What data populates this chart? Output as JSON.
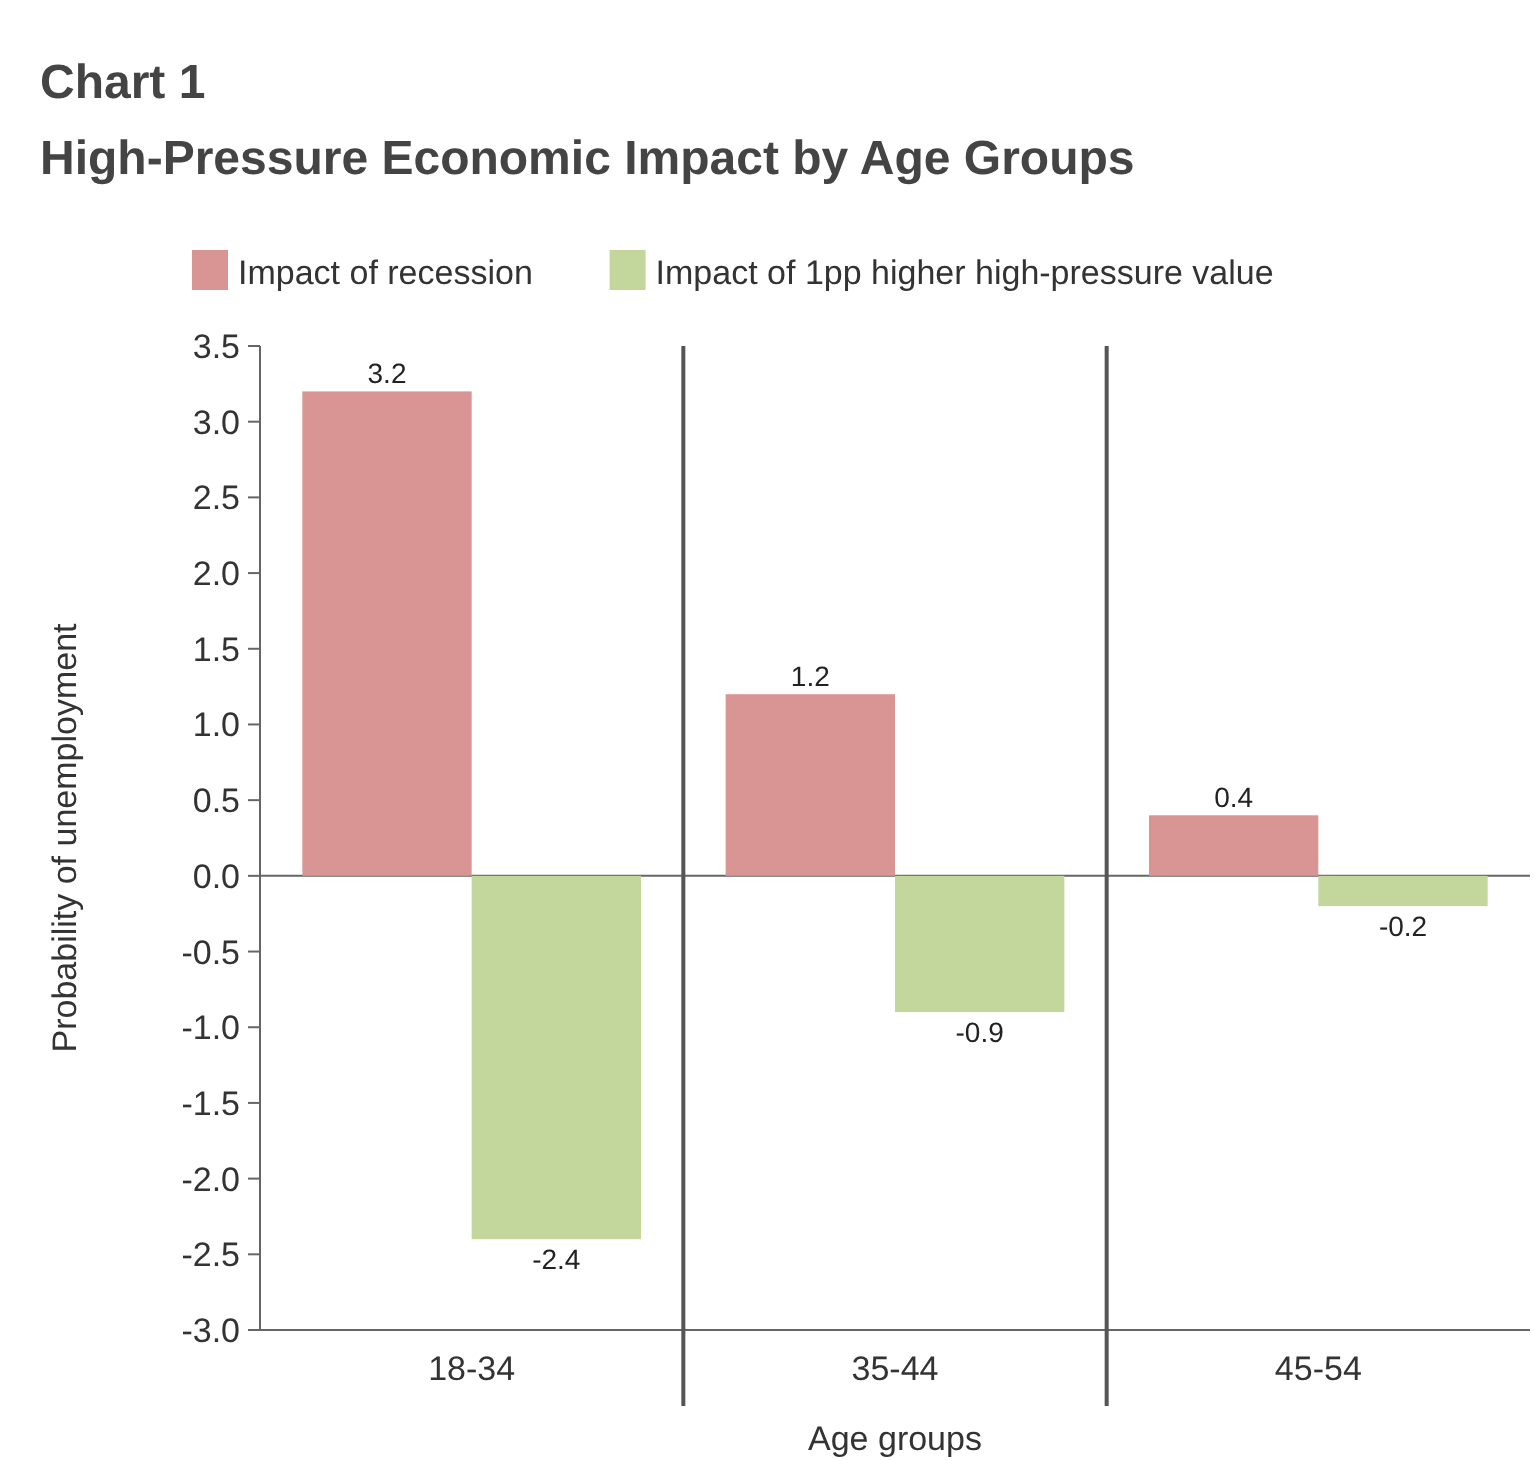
{
  "chart_data": {
    "type": "bar",
    "title": "Chart 1",
    "subtitle": "High-Pressure Economic Impact by Age Groups",
    "xlabel": "Age groups",
    "ylabel": "Probability of unemployment",
    "categories": [
      "18-34",
      "35-44",
      "45-54"
    ],
    "series": [
      {
        "name": "Impact of recession",
        "color": "#d99594",
        "values": [
          3.2,
          1.2,
          0.4
        ]
      },
      {
        "name": "Impact of 1pp higher high-pressure value",
        "color": "#c3d69b",
        "values": [
          -2.4,
          -0.9,
          -0.2
        ]
      }
    ],
    "ylim": [
      -3.0,
      3.5
    ],
    "yticks": [
      {
        "value": -3,
        "label": "-3.0"
      },
      {
        "value": -2.5,
        "label": "-2.5"
      },
      {
        "value": -2,
        "label": "-2.0"
      },
      {
        "value": -1.5,
        "label": "-1.5"
      },
      {
        "value": -1,
        "label": "-1.0"
      },
      {
        "value": -0.5,
        "label": "-0.5"
      },
      {
        "value": 0,
        "label": "0.0"
      },
      {
        "value": 0.5,
        "label": "0.5"
      },
      {
        "value": 1,
        "label": "1.0"
      },
      {
        "value": 1.5,
        "label": "1.5"
      },
      {
        "value": 2,
        "label": "2.0"
      },
      {
        "value": 2.5,
        "label": "2.5"
      },
      {
        "value": 3,
        "label": "3.0"
      },
      {
        "value": 3.5,
        "label": "3.5"
      }
    ],
    "data_labels": true,
    "legend": "top",
    "grid": false
  }
}
